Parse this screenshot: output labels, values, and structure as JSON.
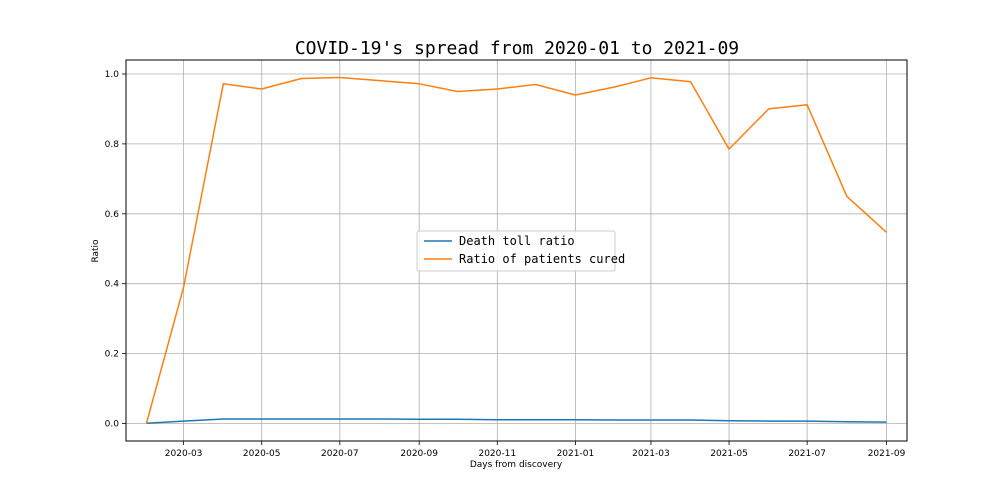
{
  "chart_data": {
    "type": "line",
    "title": "COVID-19's spread from 2020-01 to 2021-09",
    "xlabel": "Days from discovery",
    "ylabel": "Ratio",
    "xlim": [
      "2020-01-16",
      "2021-09-17"
    ],
    "ylim": [
      -0.05,
      1.04
    ],
    "x_ticks": [
      "2020-03",
      "2020-05",
      "2020-07",
      "2020-09",
      "2020-11",
      "2021-01",
      "2021-03",
      "2021-05",
      "2021-07",
      "2021-09"
    ],
    "y_ticks": [
      0.0,
      0.2,
      0.4,
      0.6,
      0.8,
      1.0
    ],
    "grid": true,
    "legend_position": "center",
    "x": [
      "2020-02-01",
      "2020-03-01",
      "2020-04-01",
      "2020-05-01",
      "2020-06-01",
      "2020-07-01",
      "2020-08-01",
      "2020-09-01",
      "2020-10-01",
      "2020-11-01",
      "2020-12-01",
      "2021-01-01",
      "2021-02-01",
      "2021-03-01",
      "2021-04-01",
      "2021-05-01",
      "2021-06-01",
      "2021-07-01",
      "2021-08-01",
      "2021-09-01"
    ],
    "series": [
      {
        "name": "Death toll ratio",
        "color": "#1f77b4",
        "values": [
          0.001,
          0.007,
          0.013,
          0.013,
          0.013,
          0.013,
          0.013,
          0.012,
          0.012,
          0.011,
          0.011,
          0.011,
          0.01,
          0.01,
          0.01,
          0.008,
          0.007,
          0.007,
          0.005,
          0.004
        ]
      },
      {
        "name": "Ratio of patients cured",
        "color": "#ff7f0e",
        "values": [
          0.001,
          0.39,
          0.972,
          0.957,
          0.987,
          0.99,
          0.981,
          0.972,
          0.95,
          0.957,
          0.97,
          0.94,
          0.963,
          0.989,
          0.978,
          0.785,
          0.9,
          0.912,
          0.65,
          0.547
        ]
      }
    ]
  }
}
